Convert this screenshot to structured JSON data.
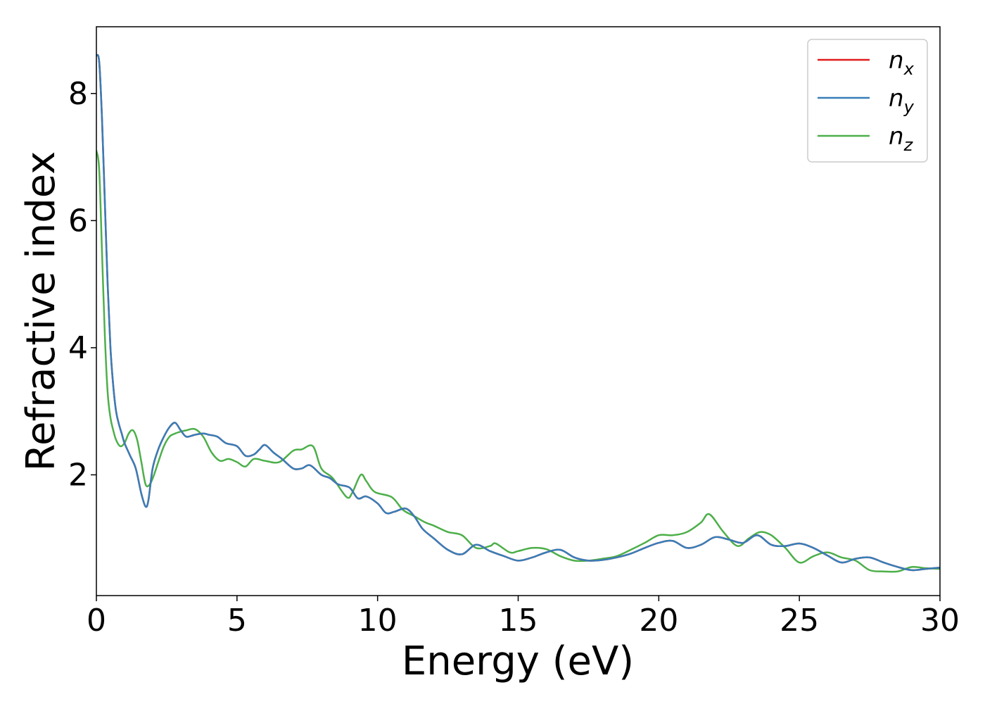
{
  "chart_data": {
    "type": "line",
    "xlabel": "Energy (eV)",
    "ylabel": "Refractive index",
    "xlim": [
      0,
      30
    ],
    "ylim": [
      0.1,
      9.05
    ],
    "xticks": [
      0,
      5,
      10,
      15,
      20,
      25,
      30
    ],
    "yticks": [
      2,
      4,
      6,
      8
    ],
    "grid": false,
    "legend_position": "top-right",
    "series": [
      {
        "name": "n",
        "subscript": "x",
        "color": "#e41a1c",
        "x": [
          0,
          0.1,
          0.2,
          0.3,
          0.4,
          0.5,
          0.6,
          0.7,
          0.8,
          0.9,
          1.0,
          1.2,
          1.4,
          1.6,
          1.75,
          1.85,
          2.0,
          2.2,
          2.4,
          2.6,
          2.8,
          3.0,
          3.2,
          3.5,
          3.8,
          4.0,
          4.3,
          4.6,
          5.0,
          5.3,
          5.6,
          5.8,
          6.0,
          6.3,
          6.6,
          7.0,
          7.3,
          7.6,
          8.0,
          8.3,
          8.6,
          9.0,
          9.3,
          9.6,
          10.0,
          10.3,
          10.6,
          11.0,
          11.3,
          11.6,
          12.0,
          12.5,
          13.0,
          13.5,
          14.0,
          14.5,
          15.0,
          15.5,
          16.0,
          16.5,
          17.0,
          17.5,
          18.0,
          18.5,
          19.0,
          19.5,
          20.0,
          20.5,
          21.0,
          21.5,
          22.0,
          22.5,
          23.0,
          23.5,
          24.0,
          24.5,
          25.0,
          25.5,
          26.0,
          26.5,
          27.0,
          27.5,
          28.0,
          28.5,
          29.0,
          29.5,
          30.0
        ],
        "y": [
          8.6,
          8.5,
          7.6,
          6.3,
          5.0,
          4.0,
          3.4,
          3.0,
          2.8,
          2.65,
          2.5,
          2.3,
          2.1,
          1.7,
          1.5,
          1.6,
          2.1,
          2.4,
          2.6,
          2.75,
          2.82,
          2.7,
          2.6,
          2.63,
          2.65,
          2.63,
          2.6,
          2.5,
          2.45,
          2.3,
          2.32,
          2.4,
          2.47,
          2.35,
          2.25,
          2.1,
          2.1,
          2.15,
          2.0,
          1.95,
          1.85,
          1.8,
          1.63,
          1.66,
          1.55,
          1.4,
          1.42,
          1.47,
          1.35,
          1.15,
          1.0,
          0.82,
          0.75,
          0.9,
          0.8,
          0.72,
          0.65,
          0.7,
          0.78,
          0.82,
          0.7,
          0.65,
          0.66,
          0.7,
          0.76,
          0.85,
          0.93,
          0.96,
          0.85,
          0.9,
          1.02,
          0.98,
          0.93,
          1.05,
          0.9,
          0.88,
          0.92,
          0.85,
          0.73,
          0.62,
          0.68,
          0.7,
          0.62,
          0.55,
          0.5,
          0.52,
          0.54
        ]
      },
      {
        "name": "n",
        "subscript": "y",
        "color": "#377eb8",
        "x": [
          0,
          0.1,
          0.2,
          0.3,
          0.4,
          0.5,
          0.6,
          0.7,
          0.8,
          0.9,
          1.0,
          1.2,
          1.4,
          1.6,
          1.75,
          1.85,
          2.0,
          2.2,
          2.4,
          2.6,
          2.8,
          3.0,
          3.2,
          3.5,
          3.8,
          4.0,
          4.3,
          4.6,
          5.0,
          5.3,
          5.6,
          5.8,
          6.0,
          6.3,
          6.6,
          7.0,
          7.3,
          7.6,
          8.0,
          8.3,
          8.6,
          9.0,
          9.3,
          9.6,
          10.0,
          10.3,
          10.6,
          11.0,
          11.3,
          11.6,
          12.0,
          12.5,
          13.0,
          13.5,
          14.0,
          14.5,
          15.0,
          15.5,
          16.0,
          16.5,
          17.0,
          17.5,
          18.0,
          18.5,
          19.0,
          19.5,
          20.0,
          20.5,
          21.0,
          21.5,
          22.0,
          22.5,
          23.0,
          23.5,
          24.0,
          24.5,
          25.0,
          25.5,
          26.0,
          26.5,
          27.0,
          27.5,
          28.0,
          28.5,
          29.0,
          29.5,
          30.0
        ],
        "y": [
          8.6,
          8.5,
          7.6,
          6.3,
          5.0,
          4.0,
          3.4,
          3.0,
          2.8,
          2.65,
          2.5,
          2.3,
          2.1,
          1.7,
          1.5,
          1.6,
          2.1,
          2.4,
          2.6,
          2.75,
          2.82,
          2.7,
          2.6,
          2.63,
          2.65,
          2.63,
          2.6,
          2.5,
          2.45,
          2.3,
          2.32,
          2.4,
          2.47,
          2.35,
          2.25,
          2.1,
          2.1,
          2.15,
          2.0,
          1.95,
          1.85,
          1.8,
          1.63,
          1.66,
          1.55,
          1.4,
          1.42,
          1.47,
          1.35,
          1.15,
          1.0,
          0.82,
          0.75,
          0.9,
          0.8,
          0.72,
          0.65,
          0.7,
          0.78,
          0.82,
          0.7,
          0.65,
          0.66,
          0.7,
          0.76,
          0.85,
          0.93,
          0.96,
          0.85,
          0.9,
          1.02,
          0.98,
          0.93,
          1.05,
          0.9,
          0.88,
          0.92,
          0.85,
          0.73,
          0.62,
          0.68,
          0.7,
          0.62,
          0.55,
          0.5,
          0.52,
          0.54
        ]
      },
      {
        "name": "n",
        "subscript": "z",
        "color": "#4daf4a",
        "x": [
          0,
          0.1,
          0.2,
          0.3,
          0.4,
          0.5,
          0.6,
          0.7,
          0.85,
          1.0,
          1.15,
          1.3,
          1.45,
          1.6,
          1.75,
          1.9,
          2.05,
          2.2,
          2.4,
          2.6,
          2.8,
          3.0,
          3.2,
          3.5,
          3.8,
          4.1,
          4.4,
          4.7,
          5.0,
          5.3,
          5.6,
          6.0,
          6.5,
          7.0,
          7.3,
          7.7,
          8.0,
          8.4,
          8.9,
          9.1,
          9.4,
          9.6,
          9.9,
          10.5,
          10.9,
          11.3,
          11.7,
          12.0,
          12.5,
          13.0,
          13.5,
          14.0,
          14.2,
          14.7,
          15.0,
          15.5,
          16.0,
          16.5,
          17.0,
          17.5,
          18.0,
          18.5,
          19.0,
          19.5,
          20.0,
          20.5,
          21.0,
          21.5,
          21.8,
          22.3,
          22.8,
          23.2,
          23.6,
          24.0,
          24.5,
          25.0,
          25.5,
          26.0,
          26.5,
          27.0,
          27.5,
          28.0,
          28.5,
          29.0,
          29.5,
          30.0
        ],
        "y": [
          7.1,
          6.8,
          5.5,
          4.2,
          3.3,
          2.9,
          2.7,
          2.55,
          2.45,
          2.5,
          2.65,
          2.7,
          2.55,
          2.2,
          1.85,
          1.85,
          2.0,
          2.2,
          2.45,
          2.6,
          2.65,
          2.68,
          2.7,
          2.72,
          2.6,
          2.35,
          2.22,
          2.25,
          2.2,
          2.13,
          2.25,
          2.22,
          2.2,
          2.38,
          2.4,
          2.45,
          2.1,
          1.95,
          1.65,
          1.72,
          2.0,
          1.9,
          1.73,
          1.65,
          1.45,
          1.35,
          1.25,
          1.2,
          1.1,
          1.05,
          0.85,
          0.88,
          0.92,
          0.78,
          0.8,
          0.85,
          0.83,
          0.72,
          0.65,
          0.65,
          0.68,
          0.72,
          0.82,
          0.93,
          1.05,
          1.05,
          1.1,
          1.25,
          1.38,
          1.1,
          0.88,
          1.0,
          1.1,
          1.05,
          0.85,
          0.62,
          0.72,
          0.78,
          0.7,
          0.65,
          0.5,
          0.48,
          0.48,
          0.55,
          0.53,
          0.52
        ]
      }
    ]
  }
}
